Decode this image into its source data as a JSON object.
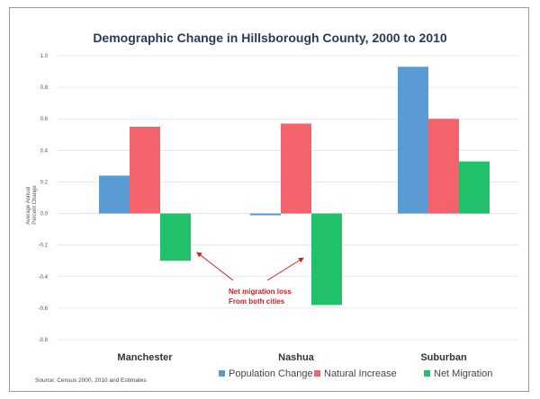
{
  "chart_data": {
    "type": "bar",
    "title": "Demographic Change in Hillsborough County, 2000 to 2010",
    "ylabel_lines": [
      "Average Annual",
      "Percent Change"
    ],
    "ylim": [
      -0.8,
      1.0
    ],
    "yticks": [
      "1.0",
      "0.8",
      "0.6",
      "0.4",
      "0.2",
      "0.0",
      "-0.2",
      "-0.4",
      "-0.6",
      "-0.8"
    ],
    "categories": [
      "Manchester",
      "Nashua",
      "Suburban"
    ],
    "series": [
      {
        "name": "Population Change",
        "color": "#5b9bd5",
        "values": [
          0.24,
          -0.01,
          0.93
        ]
      },
      {
        "name": "Natural Increase",
        "color": "#f4636b",
        "values": [
          0.55,
          0.57,
          0.6
        ]
      },
      {
        "name": "Net Migration",
        "color": "#21c16b",
        "values": [
          -0.3,
          -0.58,
          0.33
        ]
      }
    ],
    "grid": true,
    "legend_position": "bottom-right",
    "annotation": {
      "lines": [
        "Net migration loss",
        "From both cities"
      ],
      "color": "#cc1f1f"
    },
    "source": "Source: Census 2000, 2010 and Estimates"
  }
}
